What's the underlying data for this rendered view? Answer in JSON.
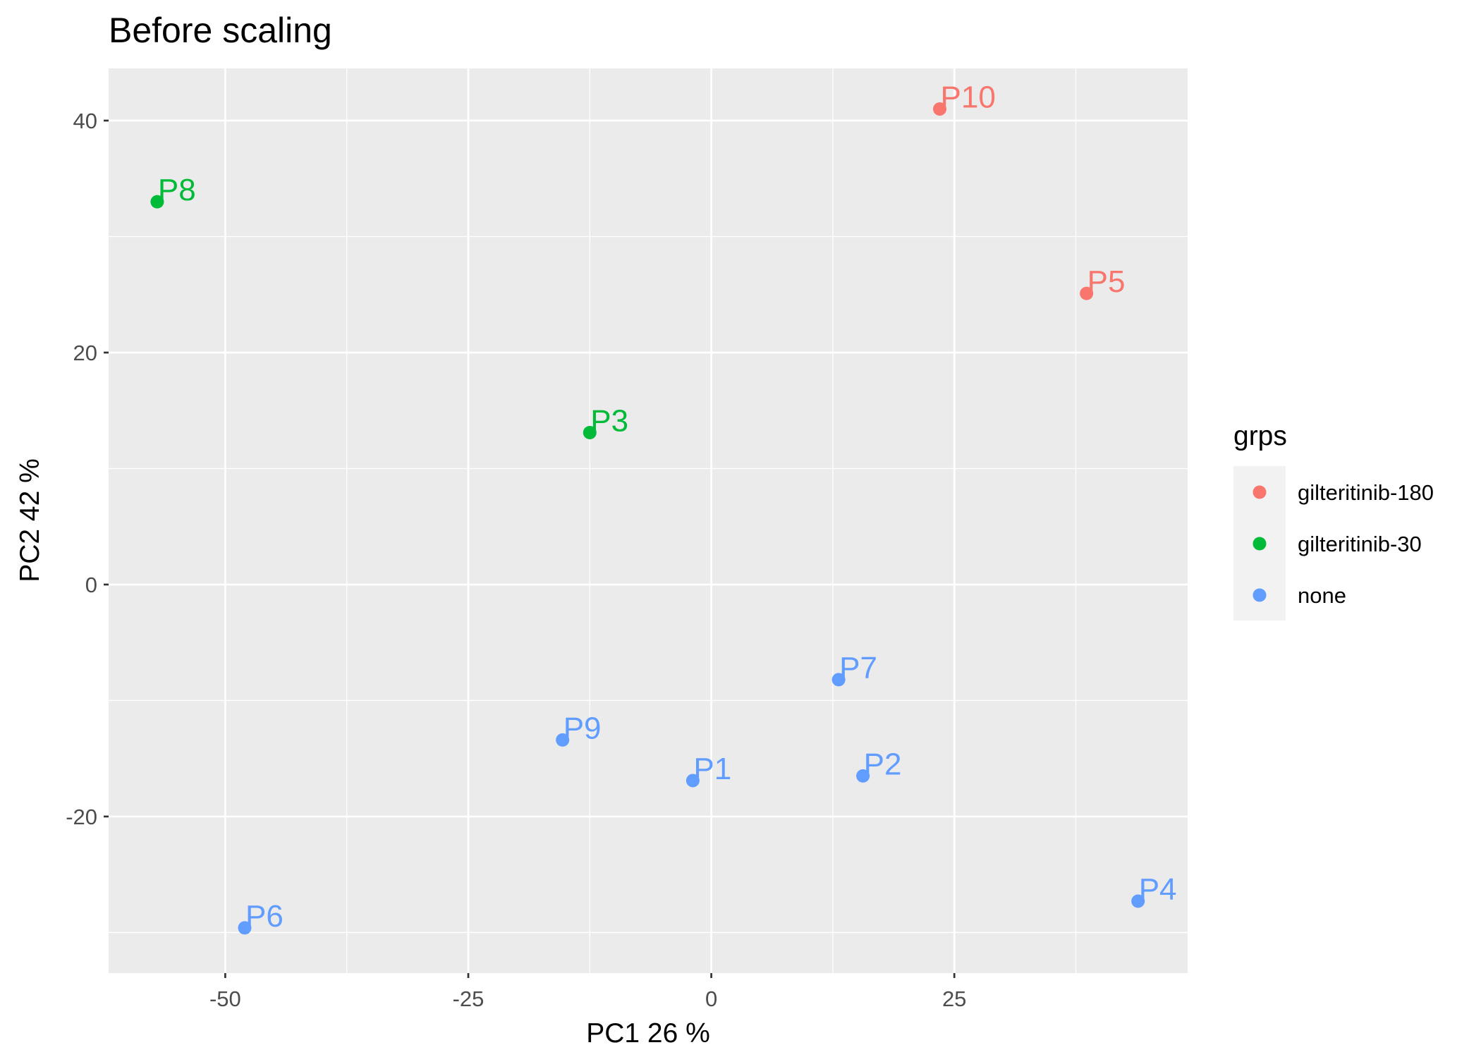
{
  "chart_data": {
    "type": "scatter",
    "title": "Before scaling",
    "xlabel": "PC1 26 %",
    "ylabel": "PC2 42 %",
    "xlim": [
      -62,
      49
    ],
    "ylim": [
      -33.5,
      44.5
    ],
    "x_ticks": [
      -50,
      -25,
      0,
      25
    ],
    "x_tick_labels": [
      "-50",
      "-25",
      "0",
      "25"
    ],
    "y_ticks": [
      -20,
      0,
      20,
      40
    ],
    "y_tick_labels": [
      "-20",
      "0",
      "20",
      "40"
    ],
    "grid": true,
    "legend": {
      "title": "grps",
      "placement": "right",
      "entries": [
        {
          "label": "gilteritinib-180",
          "color": "#F8766D"
        },
        {
          "label": "gilteritinib-30",
          "color": "#00BA38"
        },
        {
          "label": "none",
          "color": "#619CFF"
        }
      ]
    },
    "points": [
      {
        "label": "P10",
        "x": 23.5,
        "y": 41.0,
        "group": "gilteritinib-180"
      },
      {
        "label": "P5",
        "x": 38.6,
        "y": 25.1,
        "group": "gilteritinib-180"
      },
      {
        "label": "P8",
        "x": -57.0,
        "y": 33.0,
        "group": "gilteritinib-30"
      },
      {
        "label": "P3",
        "x": -12.5,
        "y": 13.1,
        "group": "gilteritinib-30"
      },
      {
        "label": "P7",
        "x": 13.1,
        "y": -8.2,
        "group": "none"
      },
      {
        "label": "P9",
        "x": -15.3,
        "y": -13.4,
        "group": "none"
      },
      {
        "label": "P1",
        "x": -1.9,
        "y": -16.9,
        "group": "none"
      },
      {
        "label": "P2",
        "x": 15.6,
        "y": -16.5,
        "group": "none"
      },
      {
        "label": "P4",
        "x": 43.9,
        "y": -27.3,
        "group": "none"
      },
      {
        "label": "P6",
        "x": -48.0,
        "y": -29.6,
        "group": "none"
      }
    ]
  }
}
